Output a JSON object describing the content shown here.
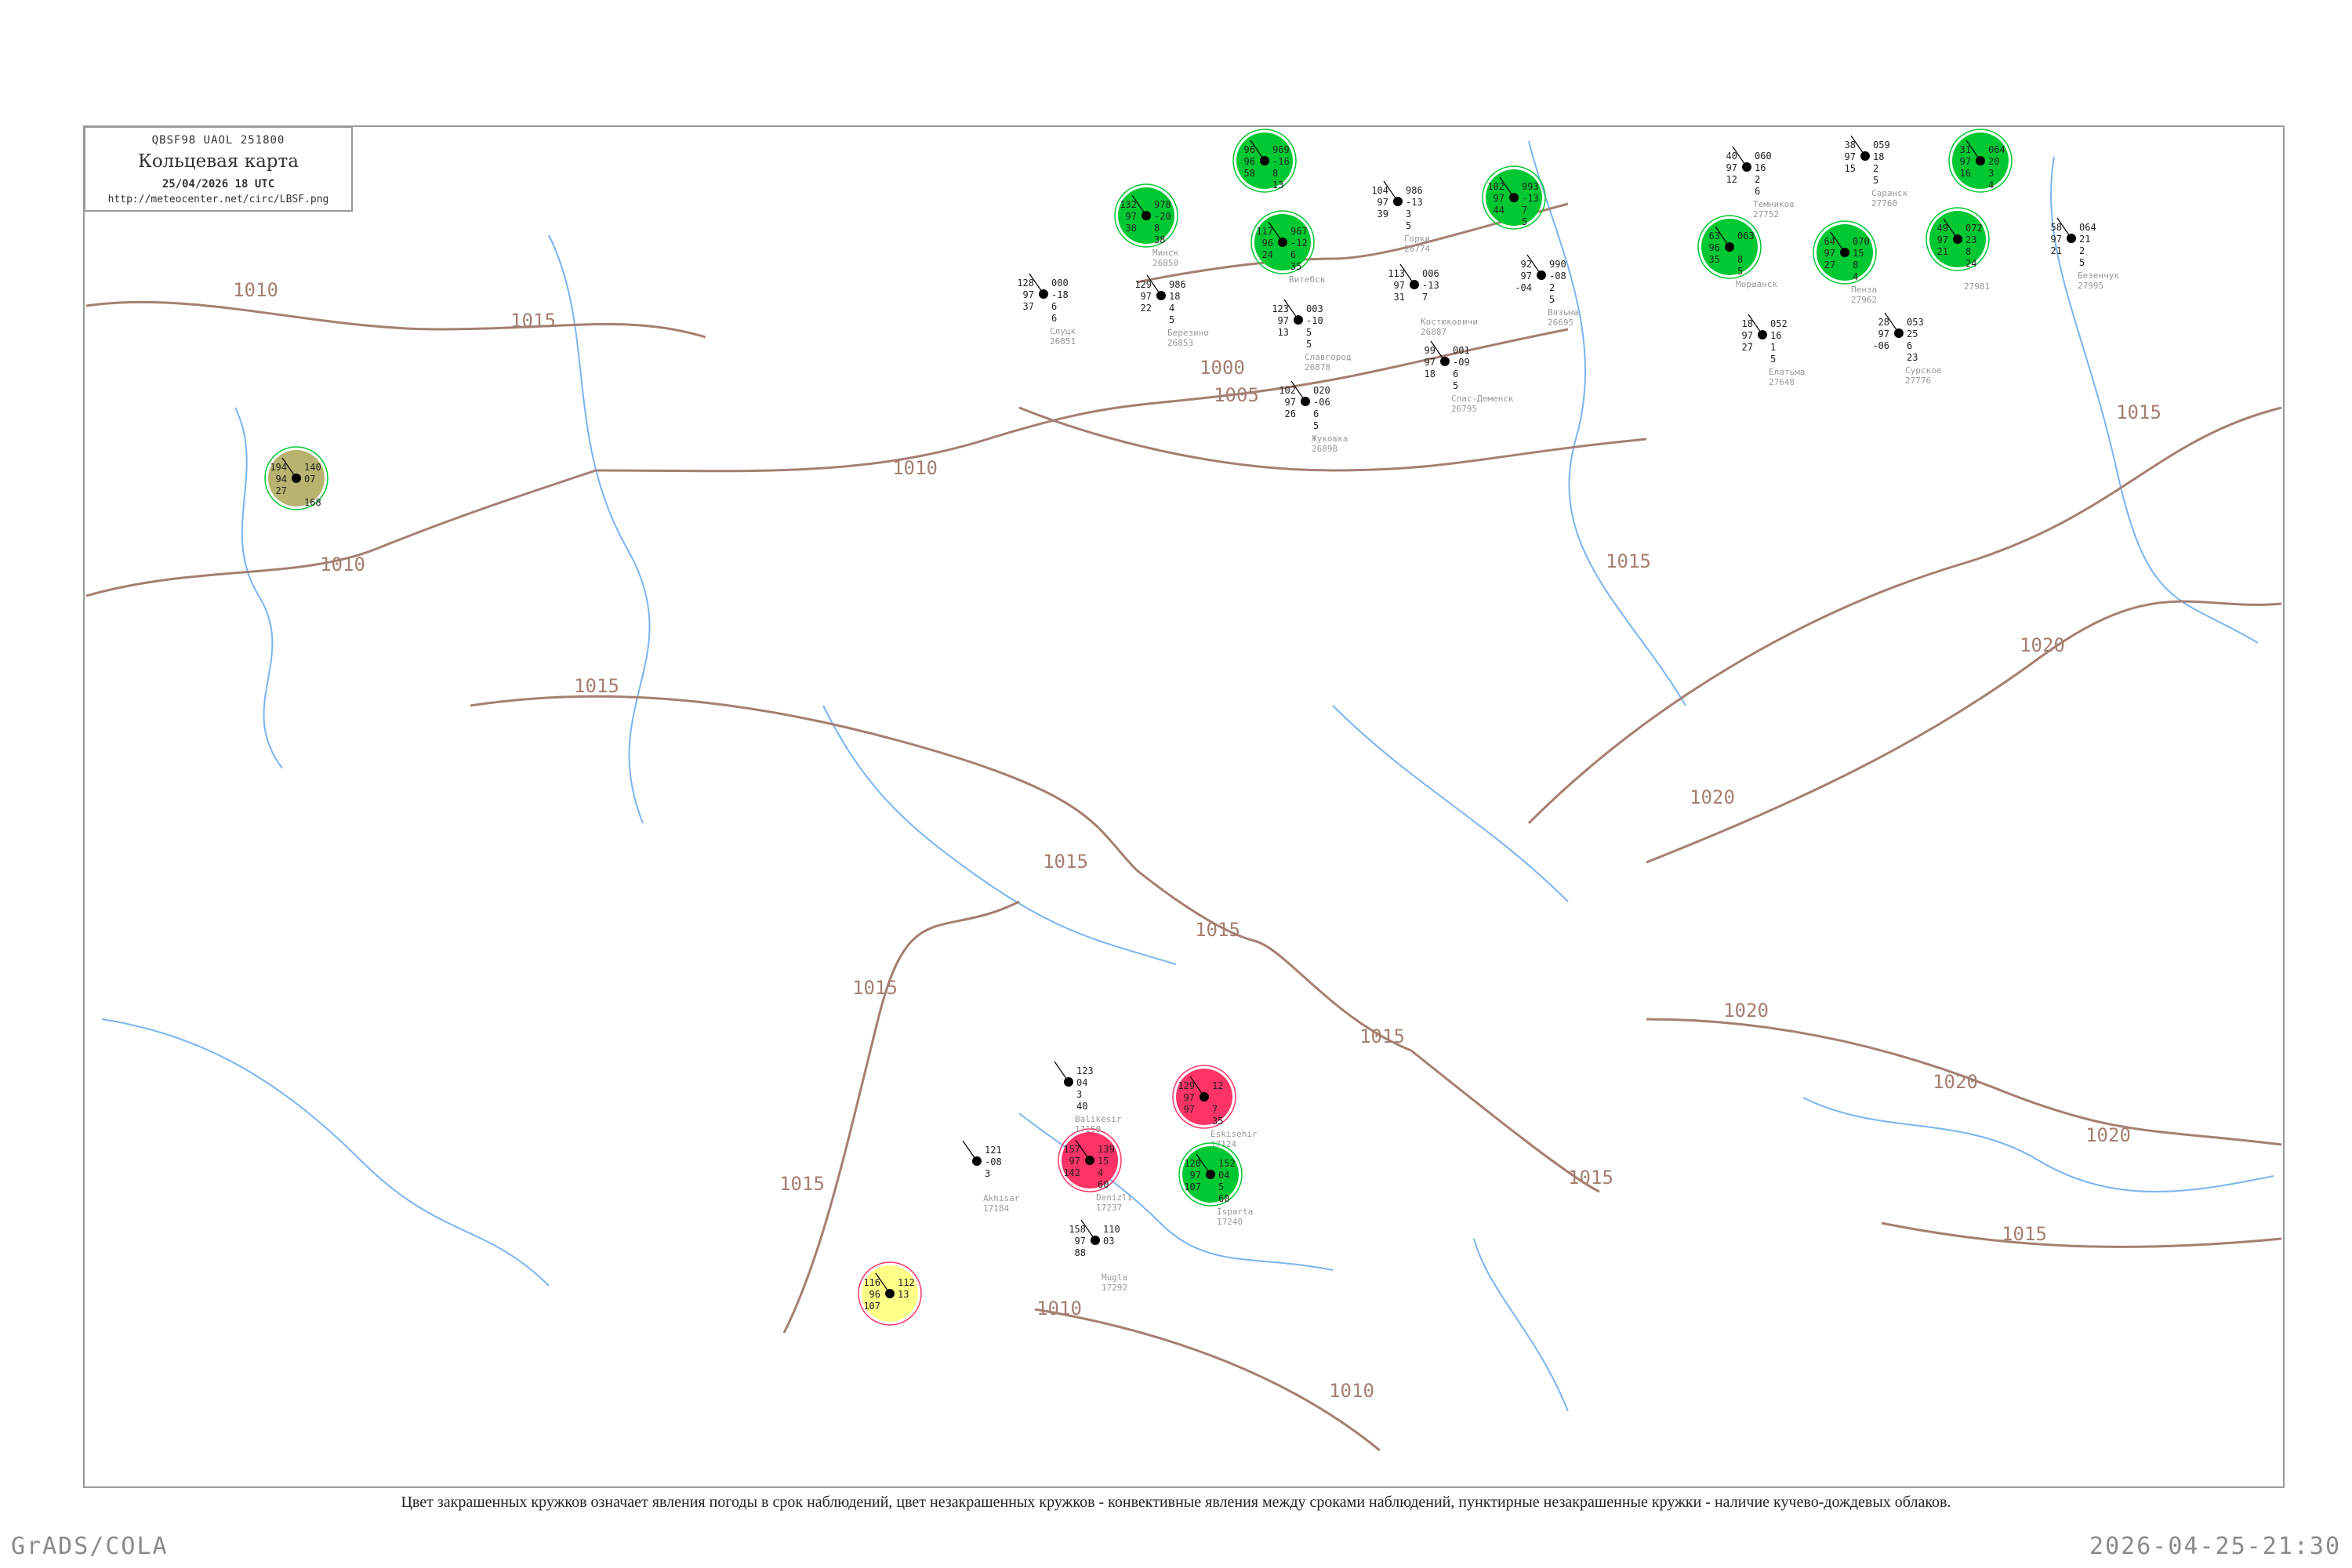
{
  "header": {
    "code": "QBSF98  UAOL  251800",
    "title": "Кольцевая карта",
    "datetime": "25/04/2026 18 UTC",
    "url": "http://meteocenter.net/circ/LBSF.png"
  },
  "caption": "Цвет закрашенных кружков означает явления погоды в срок наблюдений, цвет незакрашенных кружков - конвективные явления между сроками наблюдений, пунктирные незакрашенные кружки - наличие кучево-дождевых облаков.",
  "footer": {
    "left": "GrADS/COLA",
    "right": "2026-04-25-21:30"
  },
  "colors": {
    "green": "#00c832",
    "red": "#ff3366",
    "yellow": "#ffff88",
    "olive": "#b8b36e",
    "isobar": "#a57f72",
    "river": "#7ab4f0",
    "station_name": "#999999",
    "frame": "#999999"
  },
  "isobar_labels": [
    "1015",
    "1010",
    "1010",
    "1015",
    "1005",
    "1010",
    "1015",
    "1015",
    "1015",
    "1015",
    "1010",
    "1010",
    "1015",
    "1015",
    "1020",
    "1020",
    "1020",
    "1015",
    "1015",
    "1020",
    "1015",
    "1020",
    "1000"
  ],
  "stations": [
    {
      "name": "Минск",
      "id": "26850",
      "fill": "green",
      "tl": "132",
      "tr": "978",
      "ml": "97",
      "mr": "-20",
      "bl": "38",
      "b1": "8",
      "b2": "38"
    },
    {
      "name": "",
      "id": "",
      "fill": "green",
      "tl": "96",
      "tr": "969",
      "ml": "96",
      "mr": "-16",
      "bl": "58",
      "b1": "8",
      "b2": "13"
    },
    {
      "name": "Витебск",
      "id": "",
      "fill": "green",
      "tl": "117",
      "tr": "967",
      "ml": "96",
      "mr": "-12",
      "bl": "24",
      "b1": "6",
      "b2": "35"
    },
    {
      "name": "Горки",
      "id": "26774",
      "fill": null,
      "tl": "104",
      "tr": "986",
      "ml": "97",
      "mr": "-13",
      "bl": "39",
      "b1": "3",
      "b2": "5"
    },
    {
      "name": "Березино",
      "id": "26853",
      "fill": null,
      "tl": "129",
      "tr": "986",
      "ml": "97",
      "mr": "18",
      "bl": "22",
      "b1": "4",
      "b2": "5"
    },
    {
      "name": "Слуцк",
      "id": "26851",
      "fill": null,
      "tl": "128",
      "tr": "000",
      "ml": "97",
      "mr": "-18",
      "bl": "37",
      "b1": "6",
      "b2": "6"
    },
    {
      "name": "Славгород",
      "id": "26878",
      "fill": null,
      "tl": "123",
      "tr": "003",
      "ml": "97",
      "mr": "-10",
      "bl": "13",
      "b1": "5",
      "b2": "5"
    },
    {
      "name": "Костюковичи",
      "id": "26887",
      "fill": null,
      "tl": "113",
      "tr": "006",
      "ml": "97",
      "mr": "-13",
      "bl": "31",
      "b1": "7",
      "b2": ""
    },
    {
      "name": "",
      "id": "",
      "fill": "green",
      "tl": "102",
      "tr": "993",
      "ml": "97",
      "mr": "-13",
      "bl": "44",
      "b1": "7",
      "b2": "5"
    },
    {
      "name": "Вязьма",
      "id": "26695",
      "fill": null,
      "tl": "92",
      "tr": "990",
      "ml": "97",
      "mr": "-08",
      "bl": "-04",
      "b1": "2",
      "b2": "5"
    },
    {
      "name": "Спас-Деменск",
      "id": "26795",
      "fill": null,
      "tl": "99",
      "tr": "001",
      "ml": "97",
      "mr": "-09",
      "bl": "18",
      "b1": "6",
      "b2": "5"
    },
    {
      "name": "Жуковка",
      "id": "26898",
      "fill": null,
      "tl": "102",
      "tr": "020",
      "ml": "97",
      "mr": "-06",
      "bl": "26",
      "b1": "6",
      "b2": "5"
    },
    {
      "name": "Eskisehir",
      "id": "17124",
      "fill": "red",
      "tl": "129",
      "tr": "12",
      "ml": "97",
      "mr": "",
      "bl": "97",
      "b1": "7",
      "b2": "35"
    },
    {
      "name": "Isparta",
      "id": "17240",
      "fill": "green",
      "tl": "120",
      "tr": "152",
      "ml": "97",
      "mr": "04",
      "bl": "107",
      "b1": "5",
      "b2": "60"
    },
    {
      "name": "Denizli",
      "id": "17237",
      "fill": "red",
      "tl": "157",
      "tr": "139",
      "ml": "97",
      "mr": "15",
      "bl": "142",
      "b1": "4",
      "b2": "60"
    },
    {
      "name": "Balikesir",
      "id": "17150",
      "fill": null,
      "tl": "",
      "tr": "123",
      "ml": "",
      "mr": "04",
      "bl": "",
      "b1": "3",
      "b2": "40"
    },
    {
      "name": "Akhisar",
      "id": "17184",
      "fill": null,
      "tl": "",
      "tr": "121",
      "ml": "",
      "mr": "-08",
      "bl": "",
      "b1": "3",
      "b2": ""
    },
    {
      "name": "Mugla",
      "id": "17292",
      "fill": null,
      "tl": "158",
      "tr": "110",
      "ml": "97",
      "mr": "03",
      "bl": "88",
      "b1": "",
      "b2": ""
    },
    {
      "name": "Пенза",
      "id": "27962",
      "fill": "green",
      "tl": "64",
      "tr": "070",
      "ml": "97",
      "mr": "15",
      "bl": "27",
      "b1": "8",
      "b2": "4"
    },
    {
      "name": "Моршанск",
      "id": "",
      "fill": "green",
      "tl": "63",
      "tr": "063",
      "ml": "96",
      "mr": "",
      "bl": "35",
      "b1": "8",
      "b2": "5"
    },
    {
      "name": "",
      "id": "27981",
      "fill": "green",
      "tl": "49",
      "tr": "072",
      "ml": "97",
      "mr": "23",
      "bl": "21",
      "b1": "8",
      "b2": "24"
    },
    {
      "name": "",
      "id": "",
      "fill": "green",
      "tl": "31",
      "tr": "064",
      "ml": "97",
      "mr": "20",
      "bl": "16",
      "b1": "3",
      "b2": "4"
    },
    {
      "name": "Саранск",
      "id": "27760",
      "fill": null,
      "tl": "38",
      "tr": "059",
      "ml": "97",
      "mr": "18",
      "bl": "15",
      "b1": "2",
      "b2": "5"
    },
    {
      "name": "Темников",
      "id": "27752",
      "fill": null,
      "tl": "40",
      "tr": "060",
      "ml": "97",
      "mr": "16",
      "bl": "12",
      "b1": "2",
      "b2": "6"
    },
    {
      "name": "Сурское",
      "id": "27776",
      "fill": null,
      "tl": "28",
      "tr": "053",
      "ml": "97",
      "mr": "25",
      "bl": "-06",
      "b1": "6",
      "b2": "23"
    },
    {
      "name": "Безенчук",
      "id": "27995",
      "fill": null,
      "tl": "58",
      "tr": "064",
      "ml": "97",
      "mr": "21",
      "bl": "21",
      "b1": "2",
      "b2": "5"
    },
    {
      "name": "Елатьма",
      "id": "27648",
      "fill": null,
      "tl": "18",
      "tr": "052",
      "ml": "97",
      "mr": "16",
      "bl": "27",
      "b1": "1",
      "b2": "5"
    },
    {
      "name": "",
      "id": "",
      "fill": "olive",
      "tl": "194",
      "tr": "140",
      "ml": "94",
      "mr": "07",
      "bl": "27",
      "b1": "",
      "b2": "168"
    },
    {
      "name": "",
      "id": "",
      "fill": "yellow",
      "tl": "116",
      "tr": "112",
      "ml": "96",
      "mr": "13",
      "bl": "107",
      "b1": "",
      "b2": ""
    }
  ]
}
